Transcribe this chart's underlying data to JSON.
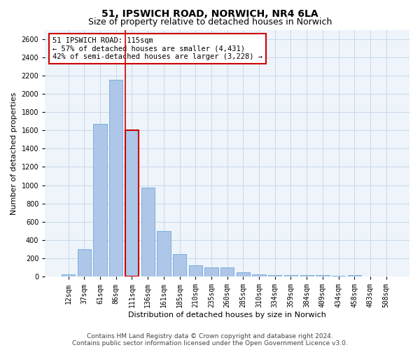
{
  "title": "51, IPSWICH ROAD, NORWICH, NR4 6LA",
  "subtitle": "Size of property relative to detached houses in Norwich",
  "xlabel": "Distribution of detached houses by size in Norwich",
  "ylabel": "Number of detached properties",
  "categories": [
    "12sqm",
    "37sqm",
    "61sqm",
    "86sqm",
    "111sqm",
    "136sqm",
    "161sqm",
    "185sqm",
    "210sqm",
    "235sqm",
    "260sqm",
    "285sqm",
    "310sqm",
    "334sqm",
    "359sqm",
    "384sqm",
    "409sqm",
    "434sqm",
    "458sqm",
    "483sqm",
    "508sqm"
  ],
  "values": [
    22,
    300,
    1670,
    2150,
    1600,
    970,
    500,
    250,
    125,
    100,
    100,
    45,
    25,
    20,
    15,
    15,
    15,
    10,
    20,
    5,
    2
  ],
  "highlight_index": 4,
  "bar_color": "#aec6e8",
  "bar_edgecolor": "#5a9fd4",
  "highlight_edgecolor": "#cc0000",
  "highlight_linewidth": 1.5,
  "vline_color": "#cc0000",
  "annotation_box_text": "51 IPSWICH ROAD: 115sqm\n← 57% of detached houses are smaller (4,431)\n42% of semi-detached houses are larger (3,228) →",
  "annotation_box_edgecolor": "#cc0000",
  "annotation_box_facecolor": "#ffffff",
  "annotation_fontsize": 7.5,
  "ylim": [
    0,
    2700
  ],
  "yticks": [
    0,
    200,
    400,
    600,
    800,
    1000,
    1200,
    1400,
    1600,
    1800,
    2000,
    2200,
    2400,
    2600
  ],
  "grid_color": "#c8d8e8",
  "bg_color": "#eef4fa",
  "fig_bg_color": "#ffffff",
  "title_fontsize": 10,
  "subtitle_fontsize": 9,
  "xlabel_fontsize": 8,
  "ylabel_fontsize": 8,
  "tick_fontsize": 7,
  "footer_line1": "Contains HM Land Registry data © Crown copyright and database right 2024.",
  "footer_line2": "Contains public sector information licensed under the Open Government Licence v3.0.",
  "footer_fontsize": 6.5
}
